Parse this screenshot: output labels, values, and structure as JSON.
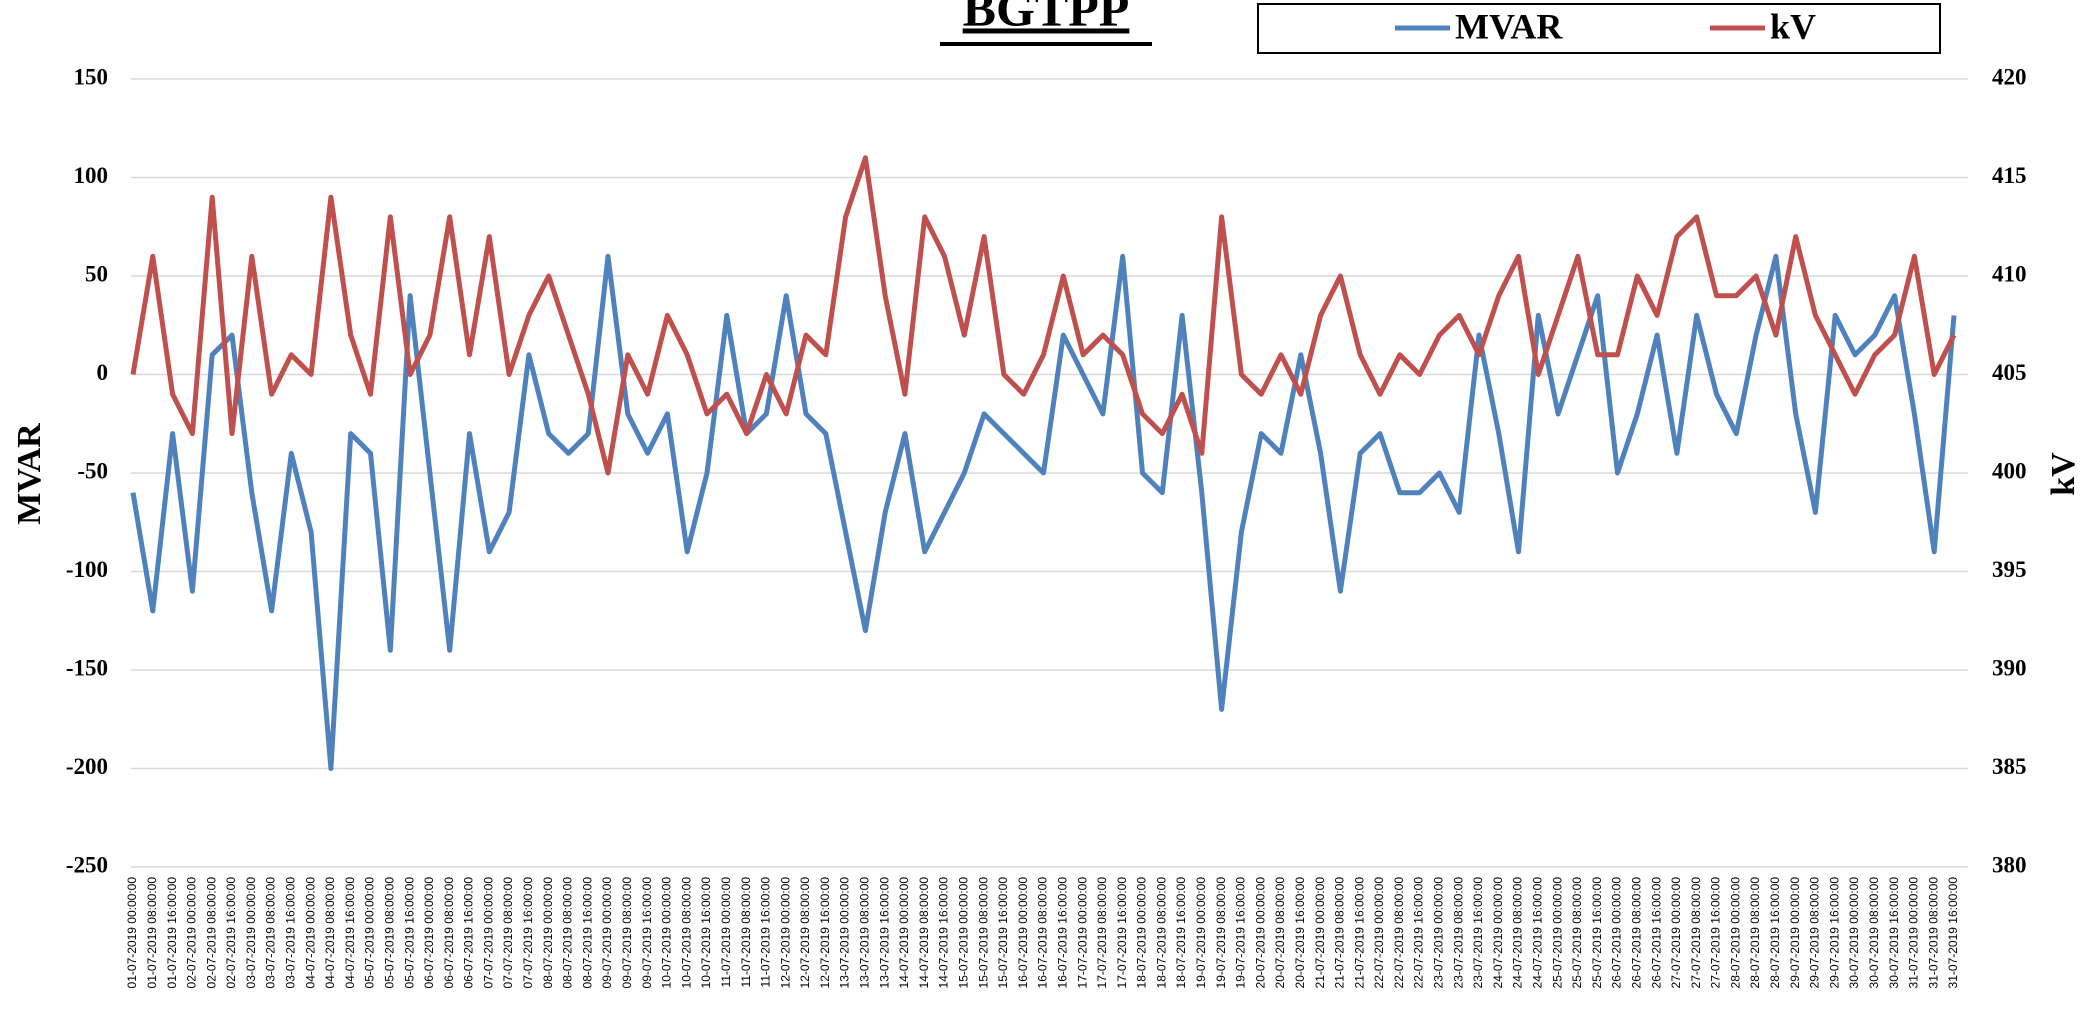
{
  "chart_data": {
    "type": "line",
    "title": "BGTPP",
    "y_label": "MVAR",
    "y2_label": "kV",
    "categories": [
      "01-07-2019 00:00:00",
      "01-07-2019 08:00:00",
      "01-07-2019 16:00:00",
      "02-07-2019 00:00:00",
      "02-07-2019 08:00:00",
      "02-07-2019 16:00:00",
      "03-07-2019 00:00:00",
      "03-07-2019 08:00:00",
      "03-07-2019 16:00:00",
      "04-07-2019 00:00:00",
      "04-07-2019 08:00:00",
      "04-07-2019 16:00:00",
      "05-07-2019 00:00:00",
      "05-07-2019 08:00:00",
      "05-07-2019 16:00:00",
      "06-07-2019 00:00:00",
      "06-07-2019 08:00:00",
      "06-07-2019 16:00:00",
      "07-07-2019 00:00:00",
      "07-07-2019 08:00:00",
      "07-07-2019 16:00:00",
      "08-07-2019 00:00:00",
      "08-07-2019 08:00:00",
      "08-07-2019 16:00:00",
      "09-07-2019 00:00:00",
      "09-07-2019 08:00:00",
      "09-07-2019 16:00:00",
      "10-07-2019 00:00:00",
      "10-07-2019 08:00:00",
      "10-07-2019 16:00:00",
      "11-07-2019 00:00:00",
      "11-07-2019 08:00:00",
      "11-07-2019 16:00:00",
      "12-07-2019 00:00:00",
      "12-07-2019 08:00:00",
      "12-07-2019 16:00:00",
      "13-07-2019 00:00:00",
      "13-07-2019 08:00:00",
      "13-07-2019 16:00:00",
      "14-07-2019 00:00:00",
      "14-07-2019 08:00:00",
      "14-07-2019 16:00:00",
      "15-07-2019 00:00:00",
      "15-07-2019 08:00:00",
      "15-07-2019 16:00:00",
      "16-07-2019 00:00:00",
      "16-07-2019 08:00:00",
      "16-07-2019 16:00:00",
      "17-07-2019 00:00:00",
      "17-07-2019 08:00:00",
      "17-07-2019 16:00:00",
      "18-07-2019 00:00:00",
      "18-07-2019 08:00:00",
      "18-07-2019 16:00:00",
      "19-07-2019 00:00:00",
      "19-07-2019 08:00:00",
      "19-07-2019 16:00:00",
      "20-07-2019 00:00:00",
      "20-07-2019 08:00:00",
      "20-07-2019 16:00:00",
      "21-07-2019 00:00:00",
      "21-07-2019 08:00:00",
      "21-07-2019 16:00:00",
      "22-07-2019 00:00:00",
      "22-07-2019 08:00:00",
      "22-07-2019 16:00:00",
      "23-07-2019 00:00:00",
      "23-07-2019 08:00:00",
      "23-07-2019 16:00:00",
      "24-07-2019 00:00:00",
      "24-07-2019 08:00:00",
      "24-07-2019 16:00:00",
      "25-07-2019 00:00:00",
      "25-07-2019 08:00:00",
      "25-07-2019 16:00:00",
      "26-07-2019 00:00:00",
      "26-07-2019 08:00:00",
      "26-07-2019 16:00:00",
      "27-07-2019 00:00:00",
      "27-07-2019 08:00:00",
      "27-07-2019 16:00:00",
      "28-07-2019 00:00:00",
      "28-07-2019 08:00:00",
      "28-07-2019 16:00:00",
      "29-07-2019 00:00:00",
      "29-07-2019 08:00:00",
      "29-07-2019 16:00:00",
      "30-07-2019 00:00:00",
      "30-07-2019 08:00:00",
      "30-07-2019 16:00:00",
      "31-07-2019 00:00:00",
      "31-07-2019 08:00:00",
      "31-07-2019 16:00:00"
    ],
    "series": [
      {
        "name": "MVAR",
        "color": "#4f81bd",
        "values": [
          -60,
          -120,
          -30,
          -110,
          10,
          20,
          -60,
          -120,
          -40,
          -80,
          -200,
          -30,
          -40,
          -140,
          40,
          -50,
          -140,
          -30,
          -90,
          -70,
          10,
          -30,
          -40,
          -30,
          60,
          -20,
          -40,
          -20,
          -90,
          -50,
          30,
          -30,
          -20,
          40,
          -20,
          -30,
          -80,
          -130,
          -70,
          -30,
          -90,
          -70,
          -50,
          -20,
          -30,
          -40,
          -50,
          20,
          0,
          -20,
          60,
          -50,
          -60,
          30,
          -60,
          -170,
          -80,
          -30,
          -40,
          10,
          -40,
          -110,
          -40,
          -30,
          -60,
          -60,
          -50,
          -70,
          20,
          -30,
          -90,
          30,
          -20,
          10,
          40,
          -50,
          -20,
          20,
          -40,
          30,
          -10,
          -30,
          20,
          60,
          -20,
          -70,
          30,
          10,
          20,
          40,
          -20,
          -90,
          30
        ]
      },
      {
        "name": "kV",
        "color": "#c0504d",
        "axis": "y2",
        "values": [
          405,
          411,
          404,
          402,
          414,
          402,
          411,
          404,
          406,
          405,
          414,
          407,
          404,
          413,
          405,
          407,
          413,
          406,
          412,
          405,
          408,
          410,
          407,
          404,
          400,
          406,
          404,
          408,
          406,
          403,
          404,
          402,
          405,
          403,
          407,
          406,
          413,
          416,
          409,
          404,
          413,
          411,
          407,
          412,
          405,
          404,
          406,
          410,
          406,
          407,
          406,
          403,
          402,
          404,
          401,
          413,
          405,
          404,
          406,
          404,
          408,
          410,
          406,
          404,
          406,
          405,
          407,
          408,
          406,
          409,
          411,
          405,
          408,
          411,
          406,
          406,
          410,
          408,
          412,
          413,
          409,
          409,
          410,
          407,
          412,
          408,
          406,
          404,
          406,
          407,
          411,
          405,
          407
        ]
      }
    ],
    "ylim": [
      -250,
      150
    ],
    "yticks": [
      -250,
      -200,
      -150,
      -100,
      -50,
      0,
      50,
      100,
      150
    ],
    "y2lim": [
      380,
      420
    ],
    "y2ticks": [
      380,
      385,
      390,
      395,
      400,
      405,
      410,
      415,
      420
    ],
    "grid": true,
    "legend": "top"
  }
}
